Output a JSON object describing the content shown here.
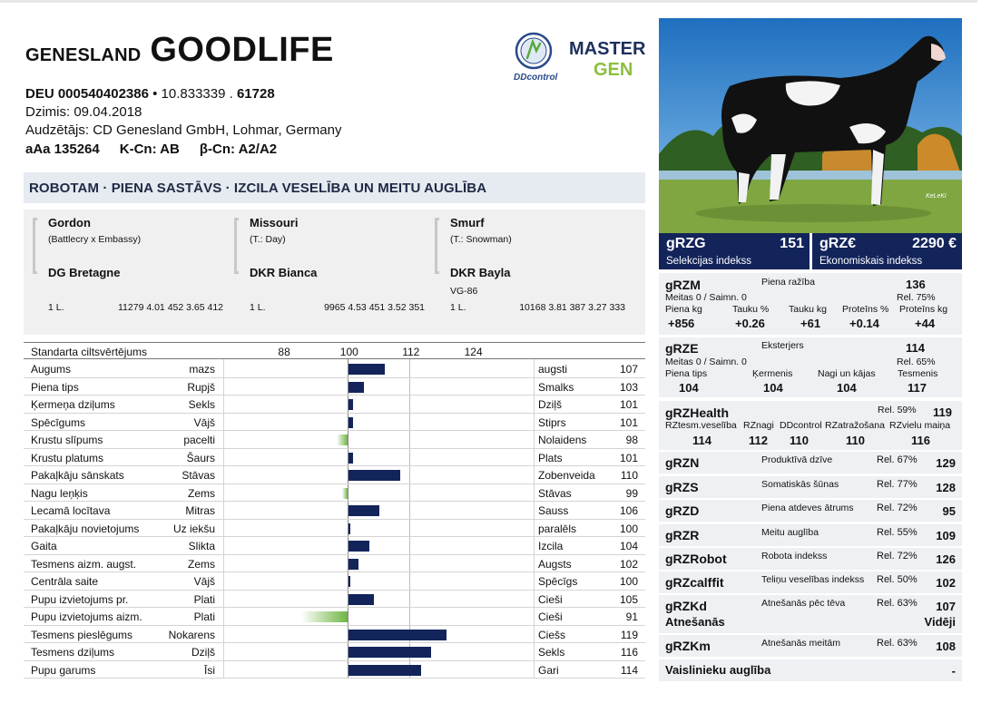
{
  "header": {
    "brand_small": "GENESLAND",
    "brand_big": "GOODLIFE",
    "reg_number": "DEU 000540402386",
    "code_mid": " • 10.833339 . ",
    "code_bold": "61728",
    "born": "Dzimis: 09.04.2018",
    "breeder": "Audzētājs: CD Genesland GmbH, Lohmar, Germany",
    "aaa": "aAa 135264",
    "kappa": "K-Cn: AB",
    "beta": "β-Cn: A2/A2"
  },
  "logos": {
    "ddcontrol": "DDcontrol",
    "mastergen_top": "MASTER",
    "mastergen_bottom": "GEN",
    "photo_credit": "KeLeKi"
  },
  "headline": "ROBOTAM · PIENA SASTĀVS · IZCILA VESELĪBA UN MEITU AUGLĪBA",
  "pedigree": [
    {
      "sire": "Gordon",
      "sire_sub": "(Battlecry x Embassy)",
      "dam": "DG Bretagne",
      "dam_extra": "",
      "lact": "1 L.",
      "perf": "11279 4.01 452 3.65 412"
    },
    {
      "sire": "Missouri",
      "sire_sub": "(T.: Day)",
      "dam": "DKR Bianca",
      "dam_extra": "",
      "lact": "1 L.",
      "perf": "9965 4.53 451 3.52 351"
    },
    {
      "sire": "Smurf",
      "sire_sub": "(T.: Snowman)",
      "dam": "DKR Bayla",
      "dam_extra": "VG-86",
      "lact": "1 L.",
      "perf": "10168 3.81 387 3.27 333"
    }
  ],
  "conformation": {
    "header_label": "Standarta ciltsvērtējums",
    "scale_min": 76,
    "scale_max": 136,
    "ticks": [
      88,
      100,
      112,
      124
    ],
    "traits": [
      {
        "name": "Augums",
        "low": "mazs",
        "high": "augsti",
        "value": 107
      },
      {
        "name": "Piena tips",
        "low": "Rupjš",
        "high": "Smalks",
        "value": 103
      },
      {
        "name": "Ķermeņa dziļums",
        "low": "Sekls",
        "high": "Dziļš",
        "value": 101
      },
      {
        "name": "Spēcīgums",
        "low": "Vājš",
        "high": "Stiprs",
        "value": 101
      },
      {
        "name": "Krustu slīpums",
        "low": "pacelti",
        "high": "Nolaidens",
        "value": 98
      },
      {
        "name": "Krustu platums",
        "low": "Šaurs",
        "high": "Plats",
        "value": 101
      },
      {
        "name": "Pakaļkāju sānskats",
        "low": "Stāvas",
        "high": "Zobenveida",
        "value": 110
      },
      {
        "name": "Nagu leņķis",
        "low": "Zems",
        "high": "Stāvas",
        "value": 99
      },
      {
        "name": "Lecamā locītava",
        "low": "Mitras",
        "high": "Sauss",
        "value": 106
      },
      {
        "name": "Pakaļkāju novietojums",
        "low": "Uz iekšu",
        "high": "paralēls",
        "value": 100
      },
      {
        "name": "Gaita",
        "low": "Slikta",
        "high": "Izcila",
        "value": 104
      },
      {
        "name": "Tesmens aizm. augst.",
        "low": "Zems",
        "high": "Augsts",
        "value": 102
      },
      {
        "name": "Centrāla saite",
        "low": "Vājš",
        "high": "Spēcīgs",
        "value": 100
      },
      {
        "name": "Pupu izvietojums pr.",
        "low": "Plati",
        "high": "Cieši",
        "value": 105
      },
      {
        "name": "Pupu izvietojums aizm.",
        "low": "Plati",
        "high": "Cieši",
        "value": 91
      },
      {
        "name": "Tesmens pieslēgums",
        "low": "Nokarens",
        "high": "Ciešs",
        "value": 119
      },
      {
        "name": "Tesmens dziļums",
        "low": "Dziļš",
        "high": "Sekls",
        "value": 116
      },
      {
        "name": "Pupu garums",
        "low": "Īsi",
        "high": "Gari",
        "value": 114
      }
    ]
  },
  "indices": {
    "grzg": {
      "name": "gRZG",
      "value": "151",
      "sub": "Selekcijas indekss"
    },
    "grze_eur": {
      "name": "gRZ€",
      "value": "2290 €",
      "sub": "Ekonomiskais indekss"
    }
  },
  "grzm": {
    "name": "gRZM",
    "label": "Piena ražība",
    "value": "136",
    "meitas": "Meitas 0 / Saimn. 0",
    "rel": "Rel. 75%",
    "cols": [
      "Piena kg",
      "Tauku %",
      "Tauku kg",
      "Proteīns %",
      "Proteīns kg"
    ],
    "vals": [
      "+856",
      "+0.26",
      "+61",
      "+0.14",
      "+44"
    ]
  },
  "grze": {
    "name": "gRZE",
    "label": "Eksterjers",
    "value": "114",
    "meitas": "Meitas 0 / Saimn. 0",
    "rel": "Rel. 65%",
    "cols": [
      "Piena tips",
      "Ķermenis",
      "Nagi un kājas",
      "Tesmenis"
    ],
    "vals": [
      "104",
      "104",
      "104",
      "117"
    ]
  },
  "grzhealth": {
    "name": "gRZHealth",
    "rel": "Rel. 59%",
    "value": "119",
    "cols": [
      "RZtesm.veselība",
      "RZnagi",
      "DDcontrol",
      "RZatražošana",
      "RZvielu maiņa"
    ],
    "vals": [
      "114",
      "112",
      "110",
      "110",
      "116"
    ]
  },
  "index_rows": [
    {
      "name": "gRZN",
      "desc": "Produktīvā dzīve",
      "rel": "Rel. 67%",
      "value": "129"
    },
    {
      "name": "gRZS",
      "desc": "Somatiskās šūnas",
      "rel": "Rel. 77%",
      "value": "128"
    },
    {
      "name": "gRZD",
      "desc": "Piena atdeves ātrums",
      "rel": "Rel. 72%",
      "value": "95"
    },
    {
      "name": "gRZR",
      "desc": "Meitu auglība",
      "rel": "Rel. 55%",
      "value": "109"
    },
    {
      "name": "gRZRobot",
      "desc": "Robota indekss",
      "rel": "Rel. 72%",
      "value": "126"
    },
    {
      "name": "gRZcalffit",
      "desc": "Teliņu veselības indekss",
      "rel": "Rel. 50%",
      "value": "102"
    }
  ],
  "grzkd": {
    "name": "gRZKd",
    "desc": "Atnešanās pēc tēva",
    "rel": "Rel. 63%",
    "value": "107",
    "sub_label": "Atnešanās",
    "sub_value": "Vidēji"
  },
  "grzkm": {
    "name": "gRZKm",
    "desc": "Atnešanās meitām",
    "rel": "Rel. 63%",
    "value": "108"
  },
  "vaislinieku": {
    "label": "Vaislinieku auglība",
    "value": "-"
  },
  "colors": {
    "navy": "#13245b",
    "green": "#6fb544",
    "panel": "#eef0f3",
    "headline_bg": "#e6eaf1"
  }
}
